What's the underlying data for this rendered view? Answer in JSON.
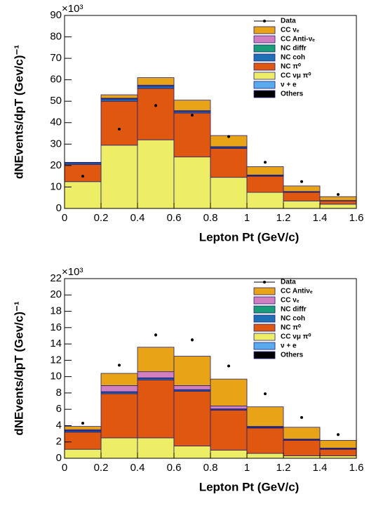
{
  "chart_data": [
    {
      "type": "histogram",
      "multiplier": "×10³",
      "x_label": "Lepton Pt (GeV/c)",
      "y_label": "dNEvents/dpT (Gev/c)⁻¹",
      "bins": [
        0,
        0.2,
        0.4,
        0.6,
        0.8,
        1,
        1.2,
        1.4,
        1.6
      ],
      "xlim": [
        0,
        1.6
      ],
      "xticks": [
        0,
        0.2,
        0.4,
        0.6,
        0.8,
        1,
        1.2,
        1.4,
        1.6
      ],
      "ylim": [
        0,
        90
      ],
      "yticks": [
        0,
        10,
        20,
        30,
        40,
        50,
        60,
        70,
        80,
        90
      ],
      "data": {
        "name": "Data",
        "color": "#000000",
        "values": [
          15,
          37,
          48,
          43.5,
          33.5,
          21.5,
          12.5,
          6.5
        ],
        "errors": [
          0.4,
          0.6,
          0.7,
          0.6,
          0.5,
          0.4,
          0.3,
          0.2
        ]
      },
      "series": [
        {
          "name": "CC νₑ",
          "color": "#e8a317",
          "values": [
            0.2,
            1.6,
            3.5,
            4.9,
            5.2,
            3.9,
            2.6,
            1.8
          ]
        },
        {
          "name": "CC Anti-νₑ",
          "color": "#d07fc0",
          "values": [
            0,
            0.3,
            0.4,
            0.3,
            0.2,
            0.2,
            0.1,
            0.1
          ]
        },
        {
          "name": "NC diffr",
          "color": "#1a9e77",
          "values": [
            0.1,
            0.1,
            0.1,
            0.1,
            0.1,
            0.1,
            0.1,
            0
          ]
        },
        {
          "name": "NC coh",
          "color": "#1f6fb5",
          "values": [
            0.7,
            1,
            1,
            0.7,
            0.5,
            0.3,
            0.2,
            0.1
          ]
        },
        {
          "name": "NC π⁰",
          "color": "#e0570f",
          "values": [
            8,
            20.5,
            24,
            20.5,
            13.5,
            7.5,
            4,
            1.5
          ]
        },
        {
          "name": "CC νμ π⁰",
          "color": "#eeee66",
          "values": [
            12.5,
            29.5,
            32,
            24,
            14.5,
            7.5,
            3.5,
            2
          ]
        },
        {
          "name": "ν + e",
          "color": "#5aaaee",
          "values": [
            0,
            0,
            0,
            0,
            0,
            0,
            0,
            0
          ]
        },
        {
          "name": "Others",
          "color": "#000000",
          "values": [
            0,
            0,
            0,
            0,
            0,
            0,
            0,
            0
          ]
        }
      ]
    },
    {
      "type": "histogram",
      "multiplier": "×10³",
      "x_label": "Lepton Pt (GeV/c)",
      "y_label": "dNEvents/dpT (Gev/c)⁻¹",
      "bins": [
        0,
        0.2,
        0.4,
        0.6,
        0.8,
        1,
        1.2,
        1.4,
        1.6
      ],
      "xlim": [
        0,
        1.6
      ],
      "xticks": [
        0,
        0.2,
        0.4,
        0.6,
        0.8,
        1,
        1.2,
        1.4,
        1.6
      ],
      "ylim": [
        0,
        22
      ],
      "yticks": [
        0,
        2,
        4,
        6,
        8,
        10,
        12,
        14,
        16,
        18,
        20,
        22
      ],
      "data": {
        "name": "Data",
        "color": "#000000",
        "values": [
          4.3,
          11.4,
          15.1,
          14.5,
          11.3,
          7.9,
          5,
          2.9
        ],
        "errors": [
          0.1,
          0.15,
          0.2,
          0.2,
          0.15,
          0.12,
          0.1,
          0.08
        ]
      },
      "series": [
        {
          "name": "CC Antiνₑ",
          "color": "#e8a317",
          "values": [
            0.4,
            1.5,
            3,
            3.6,
            3.3,
            2.4,
            1.45,
            0.95
          ]
        },
        {
          "name": "CC νₑ",
          "color": "#d07fc0",
          "values": [
            0.1,
            0.75,
            0.75,
            0.5,
            0.35,
            0.05,
            0.05,
            0.05
          ]
        },
        {
          "name": "NC diffr",
          "color": "#1a9e77",
          "values": [
            0.05,
            0.05,
            0.05,
            0.05,
            0.05,
            0.05,
            0.05,
            0.05
          ]
        },
        {
          "name": "NC coh",
          "color": "#1f6fb5",
          "values": [
            0.15,
            0.2,
            0.2,
            0.15,
            0.1,
            0.1,
            0.05,
            0.05
          ]
        },
        {
          "name": "NC π⁰",
          "color": "#e0570f",
          "values": [
            2.1,
            5.4,
            7.1,
            6.7,
            4.9,
            3.1,
            1.9,
            0.8
          ]
        },
        {
          "name": "CC νμ π⁰",
          "color": "#eeee66",
          "values": [
            1.1,
            2.5,
            2.5,
            1.5,
            1,
            0.6,
            0.3,
            0.3
          ]
        },
        {
          "name": "ν + e",
          "color": "#5aaaee",
          "values": [
            0,
            0,
            0,
            0,
            0,
            0,
            0,
            0
          ]
        },
        {
          "name": "Others",
          "color": "#000000",
          "values": [
            0,
            0,
            0,
            0,
            0,
            0,
            0,
            0
          ]
        }
      ]
    }
  ]
}
